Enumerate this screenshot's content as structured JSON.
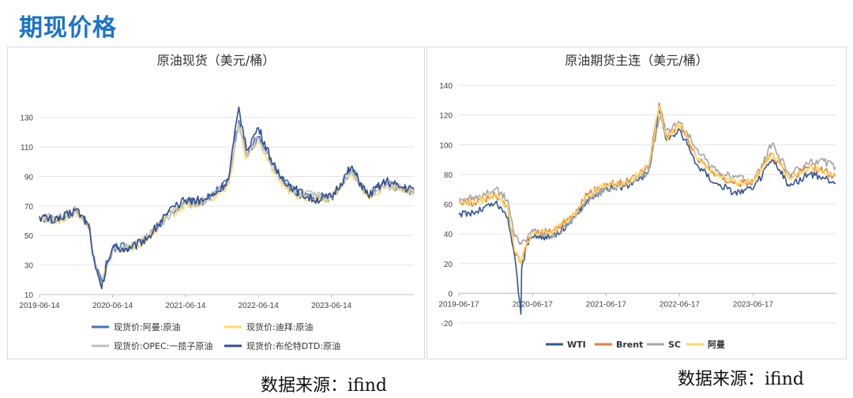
{
  "page": {
    "title": "期现价格"
  },
  "sources": {
    "left": "数据来源：ifind",
    "right": "数据来源：ifind"
  },
  "chart_data": [
    {
      "type": "line",
      "title": "原油现货（美元/桶）",
      "y_ticks": [
        10,
        30,
        50,
        70,
        90,
        110,
        130
      ],
      "ylim": [
        10,
        140
      ],
      "x_ticks": [
        "2019-06-14",
        "2020-06-14",
        "2021-06-14",
        "2022-06-14",
        "2023-06-14"
      ],
      "xlim": [
        "2019-06-14",
        "2024-07-31"
      ],
      "grid": "horizontal",
      "legend": "bottom",
      "series": [
        {
          "name": "现货价:阿曼:原油",
          "color": "#4472c4",
          "x": [
            "2019-06-14",
            "2019-09-15",
            "2019-12-15",
            "2020-02-15",
            "2020-03-20",
            "2020-04-20",
            "2020-05-20",
            "2020-06-14",
            "2020-09-15",
            "2020-12-15",
            "2021-03-15",
            "2021-06-14",
            "2021-09-15",
            "2021-11-25",
            "2022-01-15",
            "2022-03-08",
            "2022-04-15",
            "2022-06-14",
            "2022-09-15",
            "2022-12-15",
            "2023-03-15",
            "2023-06-14",
            "2023-09-20",
            "2023-12-15",
            "2024-03-15",
            "2024-05-15",
            "2024-07-31"
          ],
          "values": [
            62,
            61,
            67,
            58,
            30,
            18,
            33,
            42,
            42,
            50,
            64,
            72,
            73,
            81,
            86,
            128,
            105,
            117,
            93,
            79,
            76,
            76,
            95,
            78,
            85,
            83,
            80
          ]
        },
        {
          "name": "现货价:迪拜:原油",
          "color": "#ffd966",
          "x": [
            "2019-06-14",
            "2019-09-15",
            "2019-12-15",
            "2020-02-15",
            "2020-03-20",
            "2020-04-20",
            "2020-05-20",
            "2020-06-14",
            "2020-09-15",
            "2020-12-15",
            "2021-03-15",
            "2021-06-14",
            "2021-09-15",
            "2021-11-25",
            "2022-01-15",
            "2022-03-08",
            "2022-04-15",
            "2022-06-14",
            "2022-09-15",
            "2022-12-15",
            "2023-03-15",
            "2023-06-14",
            "2023-09-20",
            "2023-12-15",
            "2024-03-15",
            "2024-05-15",
            "2024-07-31"
          ],
          "values": [
            61,
            60,
            66,
            56,
            29,
            17,
            31,
            41,
            41,
            49,
            63,
            71,
            72,
            79,
            84,
            124,
            102,
            113,
            90,
            77,
            74,
            75,
            93,
            76,
            84,
            82,
            79
          ]
        },
        {
          "name": "现货价:OPEC:一揽子原油",
          "color": "#bfbfbf",
          "x": [
            "2019-06-14",
            "2019-09-15",
            "2019-12-15",
            "2020-02-15",
            "2020-03-20",
            "2020-04-20",
            "2020-05-20",
            "2020-06-14",
            "2020-09-15",
            "2020-12-15",
            "2021-03-15",
            "2021-06-14",
            "2021-09-15",
            "2021-11-25",
            "2022-01-15",
            "2022-03-08",
            "2022-04-15",
            "2022-06-14",
            "2022-09-15",
            "2022-12-15",
            "2023-03-15",
            "2023-06-14",
            "2023-09-20",
            "2023-12-15",
            "2024-03-15",
            "2024-05-15",
            "2024-07-31"
          ],
          "values": [
            63,
            61,
            67,
            57,
            31,
            16,
            30,
            40,
            42,
            50,
            63,
            72,
            73,
            80,
            86,
            126,
            104,
            116,
            92,
            79,
            77,
            75,
            94,
            78,
            84,
            83,
            80
          ]
        },
        {
          "name": "现货价:布伦特DTD:原油",
          "color": "#2f4f8f",
          "x": [
            "2019-06-14",
            "2019-09-15",
            "2019-12-15",
            "2020-02-15",
            "2020-03-20",
            "2020-04-20",
            "2020-05-20",
            "2020-06-14",
            "2020-09-15",
            "2020-12-15",
            "2021-03-15",
            "2021-06-14",
            "2021-09-15",
            "2021-11-25",
            "2022-01-15",
            "2022-03-08",
            "2022-04-15",
            "2022-06-14",
            "2022-09-15",
            "2022-12-15",
            "2023-03-15",
            "2023-06-14",
            "2023-09-20",
            "2023-12-15",
            "2024-03-15",
            "2024-05-15",
            "2024-07-31"
          ],
          "values": [
            63,
            60,
            68,
            57,
            28,
            14,
            32,
            42,
            41,
            50,
            65,
            74,
            74,
            80,
            88,
            137,
            108,
            123,
            92,
            81,
            74,
            76,
            96,
            77,
            87,
            83,
            81
          ]
        }
      ]
    },
    {
      "type": "line",
      "title": "原油期货主连（美元/桶）",
      "y_ticks": [
        -20,
        0,
        20,
        40,
        60,
        80,
        100,
        120,
        140
      ],
      "ylim": [
        -20,
        140
      ],
      "x_ticks": [
        "2019-06-17",
        "2020-06-17",
        "2021-06-17",
        "2022-06-17",
        "2023-06-17"
      ],
      "xlim": [
        "2019-06-17",
        "2024-07-31"
      ],
      "grid": "horizontal",
      "legend": "bottom",
      "series": [
        {
          "name": "WTI",
          "color": "#2f5597",
          "x": [
            "2019-06-17",
            "2019-09-15",
            "2019-12-15",
            "2020-02-15",
            "2020-03-20",
            "2020-04-20",
            "2020-04-24",
            "2020-05-20",
            "2020-06-17",
            "2020-09-15",
            "2020-12-15",
            "2021-03-15",
            "2021-06-17",
            "2021-09-15",
            "2021-11-25",
            "2022-01-15",
            "2022-03-08",
            "2022-04-15",
            "2022-06-17",
            "2022-09-15",
            "2022-12-15",
            "2023-03-15",
            "2023-06-17",
            "2023-09-20",
            "2023-12-15",
            "2024-03-15",
            "2024-05-15",
            "2024-07-31"
          ],
          "values": [
            53,
            55,
            61,
            51,
            25,
            -14,
            17,
            33,
            38,
            38,
            47,
            63,
            71,
            72,
            76,
            83,
            123,
            103,
            110,
            86,
            74,
            68,
            70,
            90,
            72,
            80,
            78,
            74
          ]
        },
        {
          "name": "Brent",
          "color": "#ed7d31",
          "x": [
            "2019-06-17",
            "2019-09-15",
            "2019-12-15",
            "2020-02-15",
            "2020-03-20",
            "2020-04-20",
            "2020-04-24",
            "2020-05-20",
            "2020-06-17",
            "2020-09-15",
            "2020-12-15",
            "2021-03-15",
            "2021-06-17",
            "2021-09-15",
            "2021-11-25",
            "2022-01-15",
            "2022-03-08",
            "2022-04-15",
            "2022-06-17",
            "2022-09-15",
            "2022-12-15",
            "2023-03-15",
            "2023-06-17",
            "2023-09-20",
            "2023-12-15",
            "2024-03-15",
            "2024-05-15",
            "2024-07-31"
          ],
          "values": [
            62,
            61,
            66,
            57,
            28,
            20,
            21,
            35,
            41,
            41,
            50,
            66,
            74,
            74,
            80,
            86,
            128,
            106,
            114,
            90,
            80,
            74,
            75,
            94,
            77,
            85,
            83,
            79
          ]
        },
        {
          "name": "SC",
          "color": "#a5a5a5",
          "x": [
            "2019-06-17",
            "2019-09-15",
            "2019-12-15",
            "2020-02-15",
            "2020-03-20",
            "2020-04-20",
            "2020-04-24",
            "2020-05-20",
            "2020-06-17",
            "2020-09-15",
            "2020-12-15",
            "2021-03-15",
            "2021-06-17",
            "2021-09-15",
            "2021-11-25",
            "2022-01-15",
            "2022-03-08",
            "2022-04-15",
            "2022-06-17",
            "2022-09-15",
            "2022-12-15",
            "2023-03-15",
            "2023-06-17",
            "2023-09-20",
            "2023-12-15",
            "2024-03-15",
            "2024-05-15",
            "2024-07-31"
          ],
          "values": [
            64,
            64,
            70,
            63,
            38,
            34,
            34,
            36,
            43,
            38,
            46,
            62,
            70,
            73,
            78,
            82,
            118,
            110,
            115,
            97,
            82,
            78,
            75,
            101,
            80,
            87,
            90,
            85
          ]
        },
        {
          "name": "阿曼",
          "color": "#ffd966",
          "x": [
            "2019-06-17",
            "2019-09-15",
            "2019-12-15",
            "2020-02-15",
            "2020-03-20",
            "2020-04-20",
            "2020-04-24",
            "2020-05-20",
            "2020-06-17",
            "2020-09-15",
            "2020-12-15",
            "2021-03-15",
            "2021-06-17",
            "2021-09-15",
            "2021-11-25",
            "2022-01-15",
            "2022-03-08",
            "2022-04-15",
            "2022-06-17",
            "2022-09-15",
            "2022-12-15",
            "2023-03-15",
            "2023-06-17",
            "2023-09-20",
            "2023-12-15",
            "2024-03-15",
            "2024-05-15",
            "2024-07-31"
          ],
          "values": [
            62,
            61,
            67,
            57,
            29,
            20,
            22,
            34,
            41,
            41,
            50,
            65,
            73,
            73,
            80,
            86,
            126,
            104,
            114,
            90,
            79,
            75,
            75,
            94,
            77,
            84,
            83,
            80
          ]
        }
      ]
    }
  ]
}
